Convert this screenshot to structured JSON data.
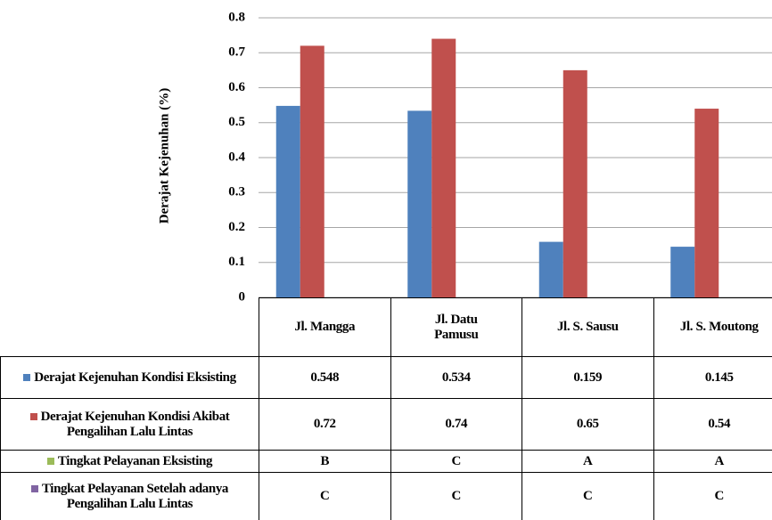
{
  "chart_data": {
    "type": "bar",
    "y_label": "Derajat Kejenuhan (%)",
    "categories": [
      "Jl. Mangga",
      "Jl. Datu Pamusu",
      "Jl. S. Sausu",
      "Jl. S. Moutong"
    ],
    "series": [
      {
        "name": "Derajat Kejenuhan Kondisi Eksisting",
        "color": "#4f81bd",
        "values": [
          0.548,
          0.534,
          0.159,
          0.145
        ]
      },
      {
        "name": "Derajat Kejenuhan Kondisi Akibat Pengalihan Lalu Lintas",
        "color": "#c0504d",
        "values": [
          0.72,
          0.74,
          0.65,
          0.54
        ]
      },
      {
        "name": "Tingkat Pelayanan Eksisting",
        "color": "#9bbb59",
        "values": [
          "B",
          "C",
          "A",
          "A"
        ]
      },
      {
        "name": "Tingkat Pelayanan Setelah adanya Pengalihan Lalu Lintas",
        "color": "#8064a2",
        "values": [
          "C",
          "C",
          "C",
          "C"
        ]
      }
    ],
    "ylim": [
      0,
      0.8
    ],
    "yticks": [
      0,
      0.1,
      0.2,
      0.3,
      0.4,
      0.5,
      0.6,
      0.7,
      0.8
    ],
    "grid": true
  }
}
